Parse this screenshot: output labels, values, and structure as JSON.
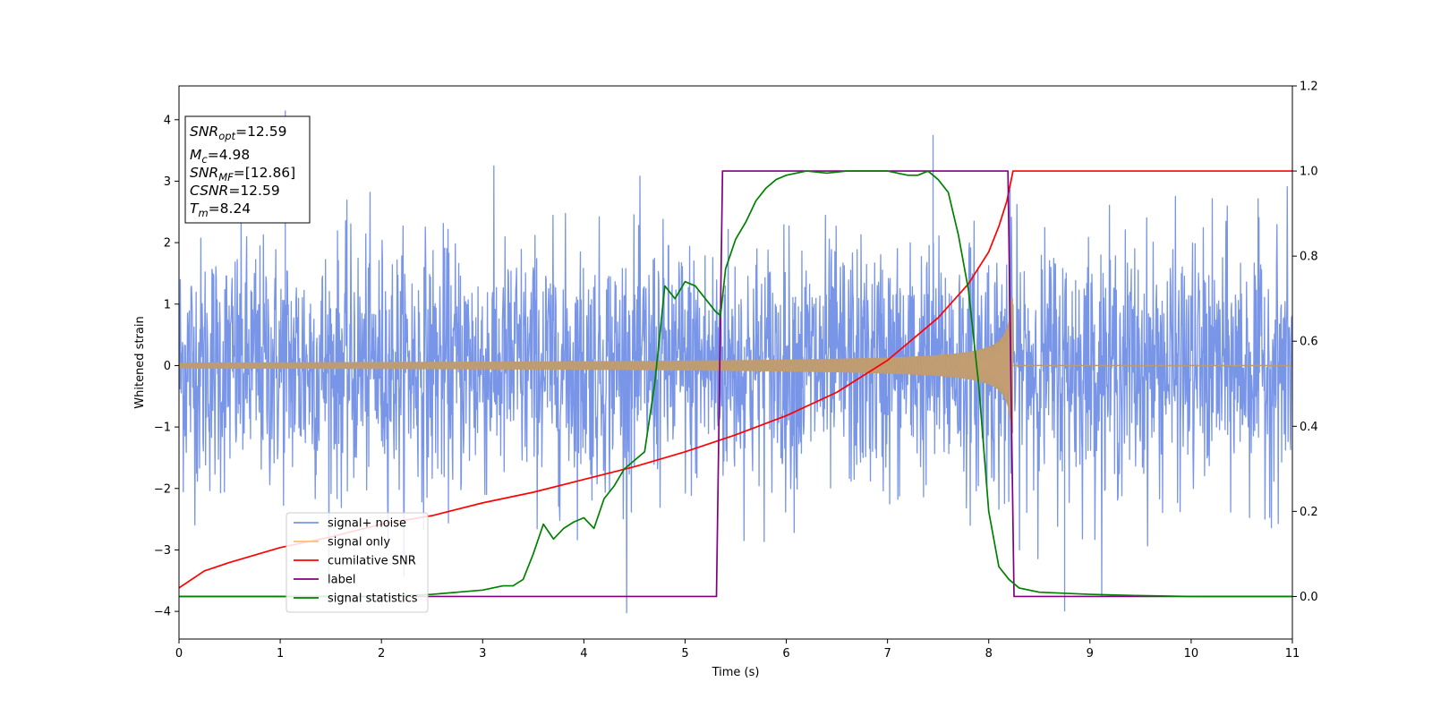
{
  "chart_data": {
    "type": "line",
    "xlabel": "Time (s)",
    "ylabel": "Whitened strain",
    "xlim": [
      0,
      11
    ],
    "ylim": [
      -4.45,
      4.55
    ],
    "y2lim": [
      -0.1,
      1.2
    ],
    "xticks": [
      "0",
      "1",
      "2",
      "3",
      "4",
      "5",
      "6",
      "7",
      "8",
      "9",
      "10",
      "11"
    ],
    "yticks": [
      "−4",
      "−3",
      "−2",
      "−1",
      "0",
      "1",
      "2",
      "3",
      "4"
    ],
    "y2ticks": [
      "0.0",
      "0.2",
      "0.4",
      "0.6",
      "0.8",
      "1.0",
      "1.2"
    ],
    "grid": false,
    "legend_position": "lower-left",
    "series": [
      {
        "name": "signal+ noise",
        "axis": "left",
        "color": "#7895e8",
        "noise_amplitude_std": 1.0,
        "range": [
          -4.0,
          4.2
        ],
        "note_peaks": [
          [
            1.05,
            4.15
          ],
          [
            7.45,
            3.75
          ],
          [
            8.75,
            -4.0
          ]
        ]
      },
      {
        "name": "signal only",
        "axis": "left",
        "color": "#ffbe74",
        "chirp": {
          "t_start": 0,
          "t_merge": 8.24,
          "amp_start": 0.05,
          "amp_merge": 1.1
        }
      },
      {
        "name": "cumilative SNR",
        "axis": "right",
        "color": "#ff0000",
        "x": [
          0,
          0.25,
          0.5,
          1.0,
          1.5,
          2.0,
          2.5,
          3.0,
          3.5,
          4.0,
          4.5,
          5.0,
          5.5,
          6.0,
          6.5,
          7.0,
          7.5,
          7.8,
          8.0,
          8.1,
          8.18,
          8.24,
          8.5,
          9.0,
          10.0,
          11.0
        ],
        "y": [
          0.02,
          0.06,
          0.08,
          0.115,
          0.14,
          0.17,
          0.19,
          0.22,
          0.245,
          0.275,
          0.305,
          0.34,
          0.38,
          0.425,
          0.48,
          0.555,
          0.655,
          0.735,
          0.81,
          0.87,
          0.93,
          1.0,
          1.0,
          1.0,
          1.0,
          1.0
        ]
      },
      {
        "name": "label",
        "axis": "right",
        "color": "#800080",
        "x": [
          0,
          5.31,
          5.37,
          8.19,
          8.25,
          11.0
        ],
        "y": [
          0.0,
          0.0,
          1.0,
          1.0,
          0.0,
          0.0
        ]
      },
      {
        "name": "signal statistics",
        "axis": "right",
        "color": "#008000",
        "x": [
          0,
          1.0,
          2.0,
          2.5,
          3.0,
          3.2,
          3.3,
          3.4,
          3.5,
          3.6,
          3.7,
          3.8,
          3.9,
          4.0,
          4.1,
          4.2,
          4.3,
          4.4,
          4.5,
          4.6,
          4.7,
          4.8,
          4.9,
          5.0,
          5.1,
          5.2,
          5.3,
          5.35,
          5.4,
          5.5,
          5.6,
          5.7,
          5.8,
          5.9,
          6.0,
          6.2,
          6.4,
          6.6,
          6.8,
          7.0,
          7.2,
          7.3,
          7.4,
          7.5,
          7.6,
          7.7,
          7.8,
          7.9,
          8.0,
          8.1,
          8.2,
          8.3,
          8.5,
          9.0,
          9.5,
          10.0,
          11.0
        ],
        "y": [
          0.0,
          0.0,
          0.0,
          0.005,
          0.015,
          0.025,
          0.025,
          0.04,
          0.1,
          0.17,
          0.135,
          0.16,
          0.175,
          0.185,
          0.16,
          0.23,
          0.26,
          0.3,
          0.32,
          0.34,
          0.5,
          0.73,
          0.7,
          0.74,
          0.73,
          0.7,
          0.67,
          0.66,
          0.77,
          0.84,
          0.88,
          0.93,
          0.96,
          0.98,
          0.99,
          1.0,
          0.995,
          1.0,
          1.0,
          1.0,
          0.99,
          0.99,
          1.0,
          0.98,
          0.95,
          0.85,
          0.72,
          0.5,
          0.2,
          0.07,
          0.04,
          0.02,
          0.01,
          0.005,
          0.002,
          0.0,
          0.0
        ]
      }
    ],
    "annotation": [
      {
        "base": "SNR",
        "sub": "opt",
        "value": "=12.59"
      },
      {
        "base": "M",
        "sub": "c",
        "value": "=4.98"
      },
      {
        "base": "SNR",
        "sub": "MF",
        "value": "=[12.86]"
      },
      {
        "base": "CSNR",
        "sub": "",
        "value": "=12.59"
      },
      {
        "base": "T",
        "sub": "m",
        "value": "=8.24"
      }
    ]
  }
}
